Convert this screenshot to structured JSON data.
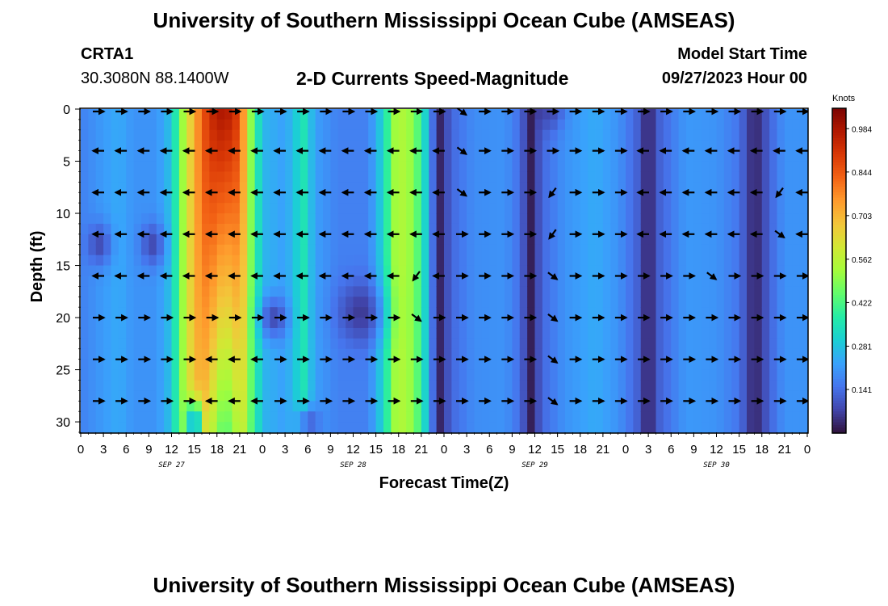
{
  "page": {
    "title_top": "University of Southern Mississippi Ocean Cube (AMSEAS)",
    "title_bottom": "University of Southern Mississippi Ocean Cube (AMSEAS)",
    "station": "CRTA1",
    "coordinates": "30.3080N  88.1400W",
    "subtitle": "2-D Currents Speed-Magnitude",
    "model_start_label": "Model Start Time",
    "model_start_value": "09/27/2023 Hour 00"
  },
  "chart_data": {
    "type": "heatmap",
    "title": "2-D Currents Speed-Magnitude",
    "xlabel": "Forecast Time(Z)",
    "ylabel": "Depth (ft)",
    "x_range_hours": [
      0,
      96
    ],
    "y_range_ft": [
      0,
      31
    ],
    "x_tick_labels": [
      "0",
      "3",
      "6",
      "9",
      "12",
      "15",
      "18",
      "21",
      "0",
      "3",
      "6",
      "9",
      "12",
      "15",
      "18",
      "21",
      "0",
      "3",
      "6",
      "9",
      "12",
      "15",
      "18",
      "21",
      "0",
      "3",
      "6",
      "9",
      "12",
      "15",
      "18",
      "21",
      "0"
    ],
    "date_labels": [
      {
        "text": "SEP 27",
        "hour": 12
      },
      {
        "text": "SEP 28",
        "hour": 36
      },
      {
        "text": "SEP 29",
        "hour": 60
      },
      {
        "text": "SEP 30",
        "hour": 84
      }
    ],
    "y_ticks": [
      0,
      5,
      10,
      15,
      20,
      25,
      30
    ],
    "colorbar": {
      "unit": "Knots",
      "tick_labels": [
        "0.984",
        "0.844",
        "0.703",
        "0.562",
        "0.422",
        "0.281",
        "0.141"
      ],
      "tick_values": [
        0.984,
        0.844,
        0.703,
        0.562,
        0.422,
        0.281,
        0.141
      ],
      "range": [
        0,
        1.05
      ]
    },
    "speed_bands": [
      {
        "hour": 0,
        "speed": 0.17
      },
      {
        "hour": 2,
        "speed": 0.2
      },
      {
        "hour": 5,
        "speed": 0.24
      },
      {
        "hour": 7,
        "speed": 0.2
      },
      {
        "hour": 10,
        "speed": 0.2
      },
      {
        "hour": 12,
        "speed": 0.28
      },
      {
        "hour": 13.5,
        "speed": 0.52
      },
      {
        "hour": 15,
        "speed": 0.72
      },
      {
        "hour": 17,
        "speed": 0.93
      },
      {
        "hour": 19,
        "speed": 1.0
      },
      {
        "hour": 21,
        "speed": 0.88
      },
      {
        "hour": 22.5,
        "speed": 0.5
      },
      {
        "hour": 24,
        "speed": 0.26
      },
      {
        "hour": 27,
        "speed": 0.22
      },
      {
        "hour": 29.5,
        "speed": 0.35
      },
      {
        "hour": 31,
        "speed": 0.22
      },
      {
        "hour": 34,
        "speed": 0.17
      },
      {
        "hour": 38,
        "speed": 0.17
      },
      {
        "hour": 40,
        "speed": 0.32
      },
      {
        "hour": 41.5,
        "speed": 0.52
      },
      {
        "hour": 43,
        "speed": 0.55
      },
      {
        "hour": 45,
        "speed": 0.4
      },
      {
        "hour": 46.5,
        "speed": 0.14
      },
      {
        "hour": 47.5,
        "speed": 0.03
      },
      {
        "hour": 49,
        "speed": 0.13
      },
      {
        "hour": 52,
        "speed": 0.19
      },
      {
        "hour": 56,
        "speed": 0.2
      },
      {
        "hour": 58,
        "speed": 0.14
      },
      {
        "hour": 59.5,
        "speed": 0.02
      },
      {
        "hour": 61,
        "speed": 0.13
      },
      {
        "hour": 64,
        "speed": 0.2
      },
      {
        "hour": 68,
        "speed": 0.24
      },
      {
        "hour": 71,
        "speed": 0.2
      },
      {
        "hour": 73.5,
        "speed": 0.12
      },
      {
        "hour": 75,
        "speed": 0.02
      },
      {
        "hour": 76.5,
        "speed": 0.12
      },
      {
        "hour": 80,
        "speed": 0.21
      },
      {
        "hour": 84,
        "speed": 0.2
      },
      {
        "hour": 87,
        "speed": 0.15
      },
      {
        "hour": 89,
        "speed": 0.02
      },
      {
        "hour": 91,
        "speed": 0.12
      },
      {
        "hour": 93,
        "speed": 0.2
      },
      {
        "hour": 96,
        "speed": 0.2
      }
    ],
    "low_speed_patches": [
      {
        "hour": 2.5,
        "depth": 13,
        "hour_spread": 1.6,
        "depth_spread": 2,
        "factor": 0.4
      },
      {
        "hour": 9.5,
        "depth": 13,
        "hour_spread": 1.6,
        "depth_spread": 2,
        "factor": 0.4
      },
      {
        "hour": 25.5,
        "depth": 20,
        "hour_spread": 1.8,
        "depth_spread": 2,
        "factor": 0.35
      },
      {
        "hour": 37,
        "depth": 19.5,
        "hour_spread": 3,
        "depth_spread": 3,
        "factor": 0.35
      },
      {
        "hour": 15,
        "depth": 30,
        "hour_spread": 1,
        "depth_spread": 2,
        "factor": 0.3
      },
      {
        "hour": 30,
        "depth": 30,
        "hour_spread": 1.5,
        "depth_spread": 1.5,
        "factor": 0.4
      },
      {
        "hour": 62,
        "depth": 0,
        "hour_spread": 2,
        "depth_spread": 2,
        "factor": 0.5
      }
    ],
    "arrow_hours": [
      0,
      3,
      6,
      9,
      12,
      15,
      18,
      21,
      24,
      27,
      30,
      33,
      36,
      39,
      42,
      45,
      48,
      51,
      54,
      57,
      60,
      63,
      66,
      69,
      72,
      75,
      78,
      81,
      84,
      87,
      90,
      93
    ],
    "arrow_depths": [
      0,
      4,
      8,
      12,
      16,
      20,
      24,
      28
    ],
    "arrow_rows": [
      [
        "E",
        "E",
        "E",
        "E",
        "E",
        "E",
        "E",
        "E",
        "E",
        "E",
        "E",
        "E",
        "E",
        "E",
        "E",
        "E",
        "SE",
        "E",
        "E",
        "E",
        "E",
        "E",
        "E",
        "E",
        "E",
        "E",
        "E",
        "E",
        "E",
        "E",
        "E",
        "E"
      ],
      [
        "W",
        "W",
        "W",
        "W",
        "W",
        "W",
        "W",
        "W",
        "W",
        "W",
        "W",
        "W",
        "W",
        "W",
        "W",
        "W",
        "SE",
        "E",
        "E",
        "E",
        "E",
        "E",
        "E",
        "E",
        "W",
        "W",
        "W",
        "W",
        "W",
        "W",
        "W",
        "W"
      ],
      [
        "W",
        "W",
        "W",
        "W",
        "W",
        "W",
        "W",
        "W",
        "W",
        "W",
        "W",
        "W",
        "W",
        "W",
        "W",
        "W",
        "SE",
        "E",
        "E",
        "E",
        "SW",
        "E",
        "E",
        "E",
        "W",
        "W",
        "W",
        "W",
        "W",
        "W",
        "SW",
        "W"
      ],
      [
        "W",
        "W",
        "W",
        "W",
        "W",
        "W",
        "W",
        "W",
        "W",
        "W",
        "W",
        "W",
        "W",
        "W",
        "W",
        "W",
        "E",
        "E",
        "E",
        "E",
        "SW",
        "E",
        "E",
        "E",
        "W",
        "W",
        "W",
        "W",
        "W",
        "W",
        "SE",
        "W"
      ],
      [
        "W",
        "W",
        "W",
        "W",
        "W",
        "W",
        "W",
        "W",
        "W",
        "W",
        "W",
        "W",
        "W",
        "W",
        "SW",
        "W",
        "E",
        "E",
        "E",
        "E",
        "SE",
        "E",
        "E",
        "E",
        "E",
        "E",
        "E",
        "SE",
        "E",
        "E",
        "E",
        "E"
      ],
      [
        "E",
        "E",
        "E",
        "E",
        "E",
        "E",
        "E",
        "E",
        "E",
        "E",
        "E",
        "E",
        "E",
        "E",
        "SE",
        "E",
        "E",
        "E",
        "E",
        "E",
        "SE",
        "E",
        "E",
        "E",
        "E",
        "E",
        "E",
        "E",
        "E",
        "E",
        "E",
        "E"
      ],
      [
        "E",
        "E",
        "E",
        "E",
        "E",
        "W",
        "W",
        "W",
        "E",
        "E",
        "E",
        "E",
        "E",
        "E",
        "E",
        "E",
        "E",
        "E",
        "E",
        "E",
        "SE",
        "E",
        "E",
        "E",
        "E",
        "E",
        "E",
        "E",
        "E",
        "E",
        "E",
        "E"
      ],
      [
        "E",
        "E",
        "E",
        "E",
        "E",
        "W",
        "W",
        "W",
        "E",
        "E",
        "E",
        "E",
        "E",
        "E",
        "E",
        "E",
        "E",
        "E",
        "E",
        "E",
        "SE",
        "E",
        "E",
        "E",
        "E",
        "E",
        "E",
        "E",
        "E",
        "E",
        "E",
        "E"
      ]
    ]
  },
  "colors": {
    "frame": "#000000",
    "background": "#ffffff",
    "colormap_stops": [
      {
        "v": 0.0,
        "c": "#30123b"
      },
      {
        "v": 0.07,
        "c": "#4145ab"
      },
      {
        "v": 0.14,
        "c": "#4675ed"
      },
      {
        "v": 0.21,
        "c": "#39a2fc"
      },
      {
        "v": 0.28,
        "c": "#1bcfd4"
      },
      {
        "v": 0.35,
        "c": "#24eca6"
      },
      {
        "v": 0.42,
        "c": "#61fc6c"
      },
      {
        "v": 0.49,
        "c": "#a4fc3b"
      },
      {
        "v": 0.56,
        "c": "#d1e834"
      },
      {
        "v": 0.63,
        "c": "#f3c63a"
      },
      {
        "v": 0.7,
        "c": "#fe9b2d"
      },
      {
        "v": 0.77,
        "c": "#f36315"
      },
      {
        "v": 0.84,
        "c": "#d93806"
      },
      {
        "v": 0.91,
        "c": "#b11901"
      },
      {
        "v": 0.98,
        "c": "#7a0402"
      }
    ]
  }
}
